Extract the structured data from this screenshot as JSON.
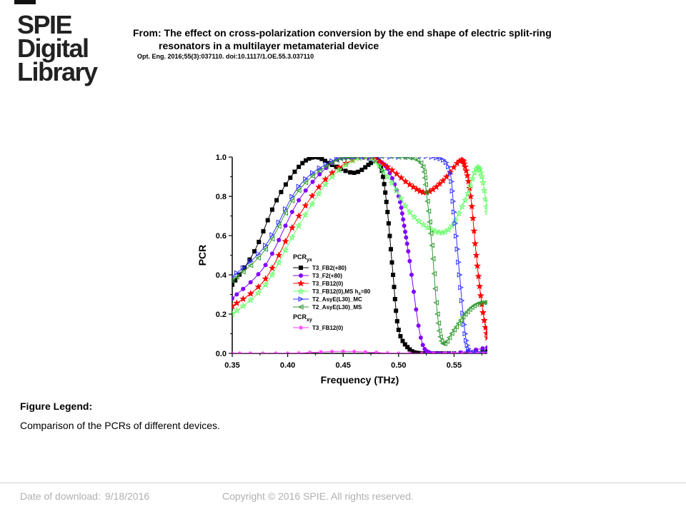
{
  "logo": {
    "lines": [
      "SPIE",
      "Digital",
      "Library"
    ]
  },
  "header": {
    "from_line1": "From: The effect on cross-polarization conversion by the end shape of electric split-ring",
    "from_line2": "resonators in a multilayer metamaterial device",
    "citation": "Opt. Eng. 2016;55(3):037110. doi:10.1117/1.OE.55.3.037110"
  },
  "figure_legend": {
    "title": "Figure Legend:",
    "text": "Comparison of the PCRs of different devices."
  },
  "footer": {
    "date_label": "Date of download:",
    "date_value": "9/18/2016",
    "copyright": "Copyright © 2016 SPIE. All rights reserved."
  },
  "colors": {
    "black": "#000000",
    "purple": "#8000ff",
    "red": "#ff0000",
    "green": "#66ff66",
    "blue": "#3333ff",
    "darkgreen": "#339933",
    "magenta": "#ff33ff"
  },
  "chart_data": {
    "type": "line",
    "xlabel": "Frequency (THz)",
    "ylabel": "PCR",
    "xlim": [
      0.35,
      0.58
    ],
    "ylim": [
      0.0,
      1.0
    ],
    "xticks": [
      "0.35",
      "0.40",
      "0.45",
      "0.50",
      "0.55"
    ],
    "yticks": [
      "0.0",
      "0.2",
      "0.4",
      "0.6",
      "0.8",
      "1.0"
    ],
    "legend_position": "center-left",
    "legend_group1": "PCR",
    "legend_group1_sub": "yx",
    "legend_group2": "PCR",
    "legend_group2_sub": "xy",
    "series": [
      {
        "name": "T3_FB2(+80)",
        "color": "#000000",
        "marker": "square",
        "x": [
          0.35,
          0.37,
          0.39,
          0.41,
          0.425,
          0.44,
          0.46,
          0.475,
          0.48,
          0.485,
          0.49,
          0.495,
          0.5,
          0.51,
          0.52,
          0.53,
          0.55,
          0.58
        ],
        "y": [
          0.35,
          0.52,
          0.78,
          0.95,
          1.0,
          0.96,
          0.92,
          0.97,
          0.99,
          0.93,
          0.72,
          0.4,
          0.12,
          0.02,
          0.0,
          0.0,
          0.0,
          0.01
        ]
      },
      {
        "name": "T3_F2(+80)",
        "color": "#8000ff",
        "marker": "circle",
        "x": [
          0.35,
          0.38,
          0.41,
          0.44,
          0.46,
          0.48,
          0.49,
          0.5,
          0.505,
          0.51,
          0.52,
          0.53,
          0.55,
          0.58
        ],
        "y": [
          0.28,
          0.45,
          0.78,
          0.97,
          1.0,
          0.98,
          0.94,
          0.8,
          0.65,
          0.47,
          0.08,
          0.0,
          0.0,
          0.03
        ]
      },
      {
        "name": "T3_FB12(0)",
        "color": "#ff0000",
        "marker": "star",
        "x": [
          0.35,
          0.38,
          0.41,
          0.44,
          0.47,
          0.49,
          0.51,
          0.525,
          0.54,
          0.555,
          0.56,
          0.565,
          0.57,
          0.575,
          0.58
        ],
        "y": [
          0.24,
          0.38,
          0.7,
          0.92,
          1.0,
          0.95,
          0.86,
          0.82,
          0.88,
          0.98,
          0.95,
          0.8,
          0.5,
          0.25,
          0.08
        ]
      },
      {
        "name": "T3_FB12(0),MS h",
        "label_sub": "s",
        "label_tail": "=80",
        "color": "#66ff66",
        "marker": "star-open",
        "x": [
          0.35,
          0.38,
          0.41,
          0.44,
          0.47,
          0.49,
          0.51,
          0.53,
          0.545,
          0.56,
          0.57,
          0.575,
          0.58
        ],
        "y": [
          0.2,
          0.35,
          0.65,
          0.9,
          1.0,
          0.9,
          0.72,
          0.63,
          0.63,
          0.78,
          0.94,
          0.9,
          0.72
        ]
      },
      {
        "name": "T2_AsyE(L30)_MC",
        "color": "#3333ff",
        "marker": "triangle-right",
        "x": [
          0.35,
          0.38,
          0.41,
          0.44,
          0.46,
          0.5,
          0.53,
          0.545,
          0.55,
          0.555,
          0.56,
          0.565,
          0.57,
          0.58
        ],
        "y": [
          0.39,
          0.55,
          0.85,
          0.98,
          1.0,
          1.0,
          1.0,
          0.95,
          0.72,
          0.4,
          0.1,
          0.0,
          0.0,
          0.0
        ]
      },
      {
        "name": "T2_AsyE(L30)_MS",
        "color": "#339933",
        "marker": "triangle-left",
        "x": [
          0.35,
          0.38,
          0.41,
          0.44,
          0.46,
          0.5,
          0.52,
          0.525,
          0.53,
          0.535,
          0.54,
          0.55,
          0.56,
          0.57,
          0.58
        ],
        "y": [
          0.37,
          0.53,
          0.83,
          0.97,
          1.0,
          1.0,
          0.97,
          0.82,
          0.55,
          0.2,
          0.05,
          0.12,
          0.2,
          0.25,
          0.26
        ]
      },
      {
        "name": "T3_FB12(0)",
        "color": "#ff33ff",
        "marker": "asterisk",
        "group": "xy",
        "x": [
          0.35,
          0.4,
          0.45,
          0.5,
          0.55,
          0.58
        ],
        "y": [
          0.0,
          0.0,
          0.01,
          0.0,
          0.0,
          0.0
        ]
      }
    ]
  }
}
